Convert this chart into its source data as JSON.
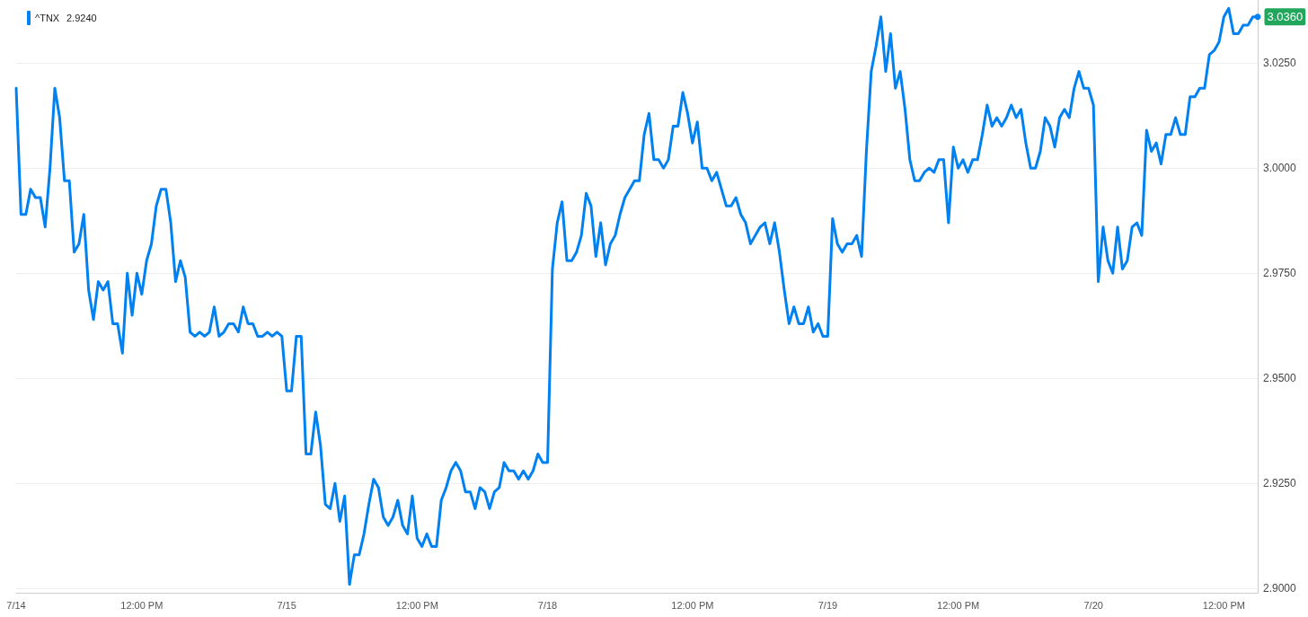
{
  "chart_data": {
    "type": "line",
    "categories": [
      "7/14",
      null,
      null,
      null,
      null,
      null,
      null,
      null,
      null,
      null,
      null,
      null,
      null,
      null,
      null,
      null,
      null,
      null,
      null,
      null,
      null,
      null,
      null,
      null,
      null,
      null,
      "12:00 PM",
      null,
      null,
      null,
      null,
      null,
      null,
      null,
      null,
      null,
      null,
      null,
      null,
      null,
      null,
      null,
      null,
      null,
      null,
      null,
      null,
      null,
      null,
      null,
      null,
      null,
      null,
      null,
      null,
      null,
      "7/15",
      null,
      null,
      null,
      null,
      null,
      null,
      null,
      null,
      null,
      null,
      null,
      null,
      null,
      null,
      null,
      null,
      null,
      null,
      null,
      null,
      null,
      null,
      null,
      null,
      null,
      null,
      "12:00 PM",
      null,
      null,
      null,
      null,
      null,
      null,
      null,
      null,
      null,
      null,
      null,
      null,
      null,
      null,
      null,
      null,
      null,
      null,
      null,
      null,
      null,
      null,
      null,
      null,
      null,
      null,
      "7/18",
      null,
      null,
      null,
      null,
      null,
      null,
      null,
      null,
      null,
      null,
      null,
      null,
      null,
      null,
      null,
      null,
      null,
      null,
      null,
      null,
      null,
      null,
      null,
      null,
      null,
      null,
      null,
      null,
      null,
      "12:00 PM",
      null,
      null,
      null,
      null,
      null,
      null,
      null,
      null,
      null,
      null,
      null,
      null,
      null,
      null,
      null,
      null,
      null,
      null,
      null,
      null,
      null,
      null,
      null,
      null,
      null,
      null,
      null,
      "7/19",
      null,
      null,
      null,
      null,
      null,
      null,
      null,
      null,
      null,
      null,
      null,
      null,
      null,
      null,
      null,
      null,
      null,
      null,
      null,
      null,
      null,
      null,
      null,
      null,
      null,
      null,
      "12:00 PM",
      null,
      null,
      null,
      null,
      null,
      null,
      null,
      null,
      null,
      null,
      null,
      null,
      null,
      null,
      null,
      null,
      null,
      null,
      null,
      null,
      null,
      null,
      null,
      null,
      null,
      null,
      null,
      "7/20",
      null,
      null,
      null,
      null,
      null,
      null,
      null,
      null,
      null,
      null,
      null,
      null,
      null,
      null,
      null,
      null,
      null,
      null,
      null,
      null,
      null,
      null,
      null,
      null,
      null,
      null,
      "12:00 PM",
      null,
      null,
      null,
      null,
      null,
      null,
      null
    ],
    "series": [
      {
        "name": "^TNX",
        "color": "#0081f2",
        "values": [
          3.019,
          2.989,
          2.989,
          2.995,
          2.993,
          2.993,
          2.986,
          3.0,
          3.019,
          3.012,
          2.997,
          2.997,
          2.98,
          2.982,
          2.989,
          2.971,
          2.964,
          2.973,
          2.971,
          2.973,
          2.963,
          2.963,
          2.956,
          2.975,
          2.965,
          2.975,
          2.97,
          2.978,
          2.982,
          2.991,
          2.995,
          2.995,
          2.987,
          2.973,
          2.978,
          2.974,
          2.961,
          2.96,
          2.961,
          2.96,
          2.961,
          2.967,
          2.96,
          2.961,
          2.963,
          2.963,
          2.961,
          2.967,
          2.963,
          2.963,
          2.96,
          2.96,
          2.961,
          2.96,
          2.961,
          2.96,
          2.947,
          2.947,
          2.96,
          2.96,
          2.932,
          2.932,
          2.942,
          2.934,
          2.92,
          2.919,
          2.925,
          2.916,
          2.922,
          2.901,
          2.908,
          2.908,
          2.913,
          2.92,
          2.926,
          2.924,
          2.917,
          2.915,
          2.917,
          2.921,
          2.915,
          2.913,
          2.922,
          2.912,
          2.91,
          2.913,
          2.91,
          2.91,
          2.921,
          2.924,
          2.928,
          2.93,
          2.928,
          2.923,
          2.923,
          2.919,
          2.924,
          2.923,
          2.919,
          2.923,
          2.924,
          2.93,
          2.928,
          2.928,
          2.926,
          2.928,
          2.926,
          2.928,
          2.932,
          2.93,
          2.93,
          2.976,
          2.987,
          2.992,
          2.978,
          2.978,
          2.98,
          2.984,
          2.994,
          2.991,
          2.979,
          2.987,
          2.977,
          2.982,
          2.984,
          2.989,
          2.993,
          2.995,
          2.997,
          2.997,
          3.008,
          3.013,
          3.002,
          3.002,
          3.0,
          3.002,
          3.01,
          3.01,
          3.018,
          3.013,
          3.006,
          3.011,
          3.0,
          3.0,
          2.997,
          2.999,
          2.995,
          2.991,
          2.991,
          2.993,
          2.989,
          2.987,
          2.982,
          2.984,
          2.986,
          2.987,
          2.982,
          2.987,
          2.98,
          2.971,
          2.963,
          2.967,
          2.963,
          2.963,
          2.967,
          2.961,
          2.963,
          2.96,
          2.96,
          2.988,
          2.982,
          2.98,
          2.982,
          2.982,
          2.984,
          2.979,
          3.004,
          3.023,
          3.029,
          3.036,
          3.023,
          3.032,
          3.019,
          3.023,
          3.014,
          3.002,
          2.997,
          2.997,
          2.999,
          3.0,
          2.999,
          3.002,
          3.002,
          2.987,
          3.005,
          3.0,
          3.002,
          2.999,
          3.002,
          3.002,
          3.008,
          3.015,
          3.01,
          3.012,
          3.01,
          3.012,
          3.015,
          3.012,
          3.014,
          3.006,
          3.0,
          3.0,
          3.004,
          3.012,
          3.01,
          3.005,
          3.012,
          3.014,
          3.012,
          3.019,
          3.023,
          3.019,
          3.019,
          3.015,
          2.973,
          2.986,
          2.978,
          2.975,
          2.986,
          2.976,
          2.978,
          2.986,
          2.987,
          2.984,
          3.009,
          3.004,
          3.006,
          3.001,
          3.008,
          3.008,
          3.012,
          3.008,
          3.008,
          3.017,
          3.017,
          3.019,
          3.019,
          3.027,
          3.028,
          3.03,
          3.036,
          3.038,
          3.032,
          3.032,
          3.034,
          3.034,
          3.036,
          3.036
        ]
      }
    ],
    "ylim": [
      2.899,
      3.04
    ],
    "yticks": [
      {
        "value": 2.9,
        "label": "2.9000"
      },
      {
        "value": 2.925,
        "label": "2.9250"
      },
      {
        "value": 2.95,
        "label": "2.9500"
      },
      {
        "value": 2.975,
        "label": "2.9750"
      },
      {
        "value": 3.0,
        "label": "3.0000"
      },
      {
        "value": 3.025,
        "label": "3.0250"
      }
    ],
    "annotations": [
      "2.9240",
      "3.0360"
    ],
    "grid": "y",
    "legend": "top left",
    "marker": "none",
    "line_style": "solid"
  }
}
